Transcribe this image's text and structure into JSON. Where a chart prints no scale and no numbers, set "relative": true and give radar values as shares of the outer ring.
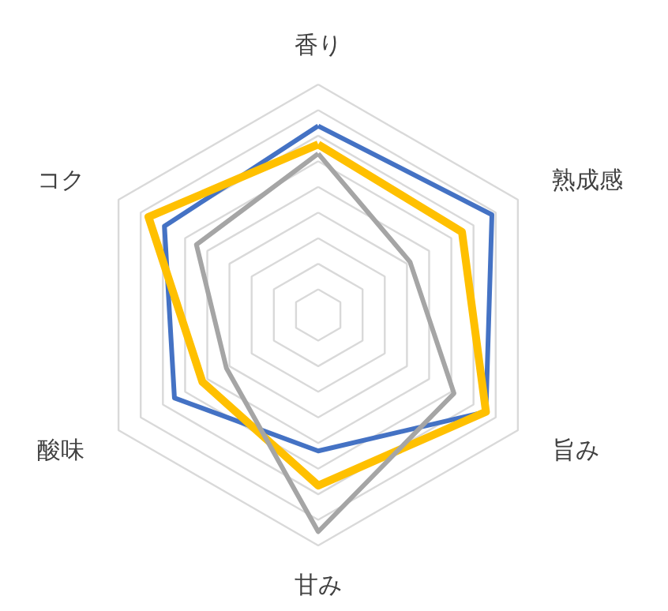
{
  "chart_data": {
    "type": "radar",
    "relative": true,
    "grid": true,
    "categories": [
      "香り",
      "熟成感",
      "旨み",
      "甘み",
      "酸味",
      "コク"
    ],
    "series": [
      {
        "color": "#4472c4",
        "values": [
          0.82,
          0.87,
          0.84,
          0.59,
          0.72,
          0.77
        ]
      },
      {
        "color": "#ffc000",
        "values": [
          0.74,
          0.72,
          0.84,
          0.74,
          0.58,
          0.85
        ]
      },
      {
        "color": "#a5a5a5",
        "values": [
          0.7,
          0.46,
          0.68,
          0.94,
          0.46,
          0.61
        ]
      }
    ]
  }
}
